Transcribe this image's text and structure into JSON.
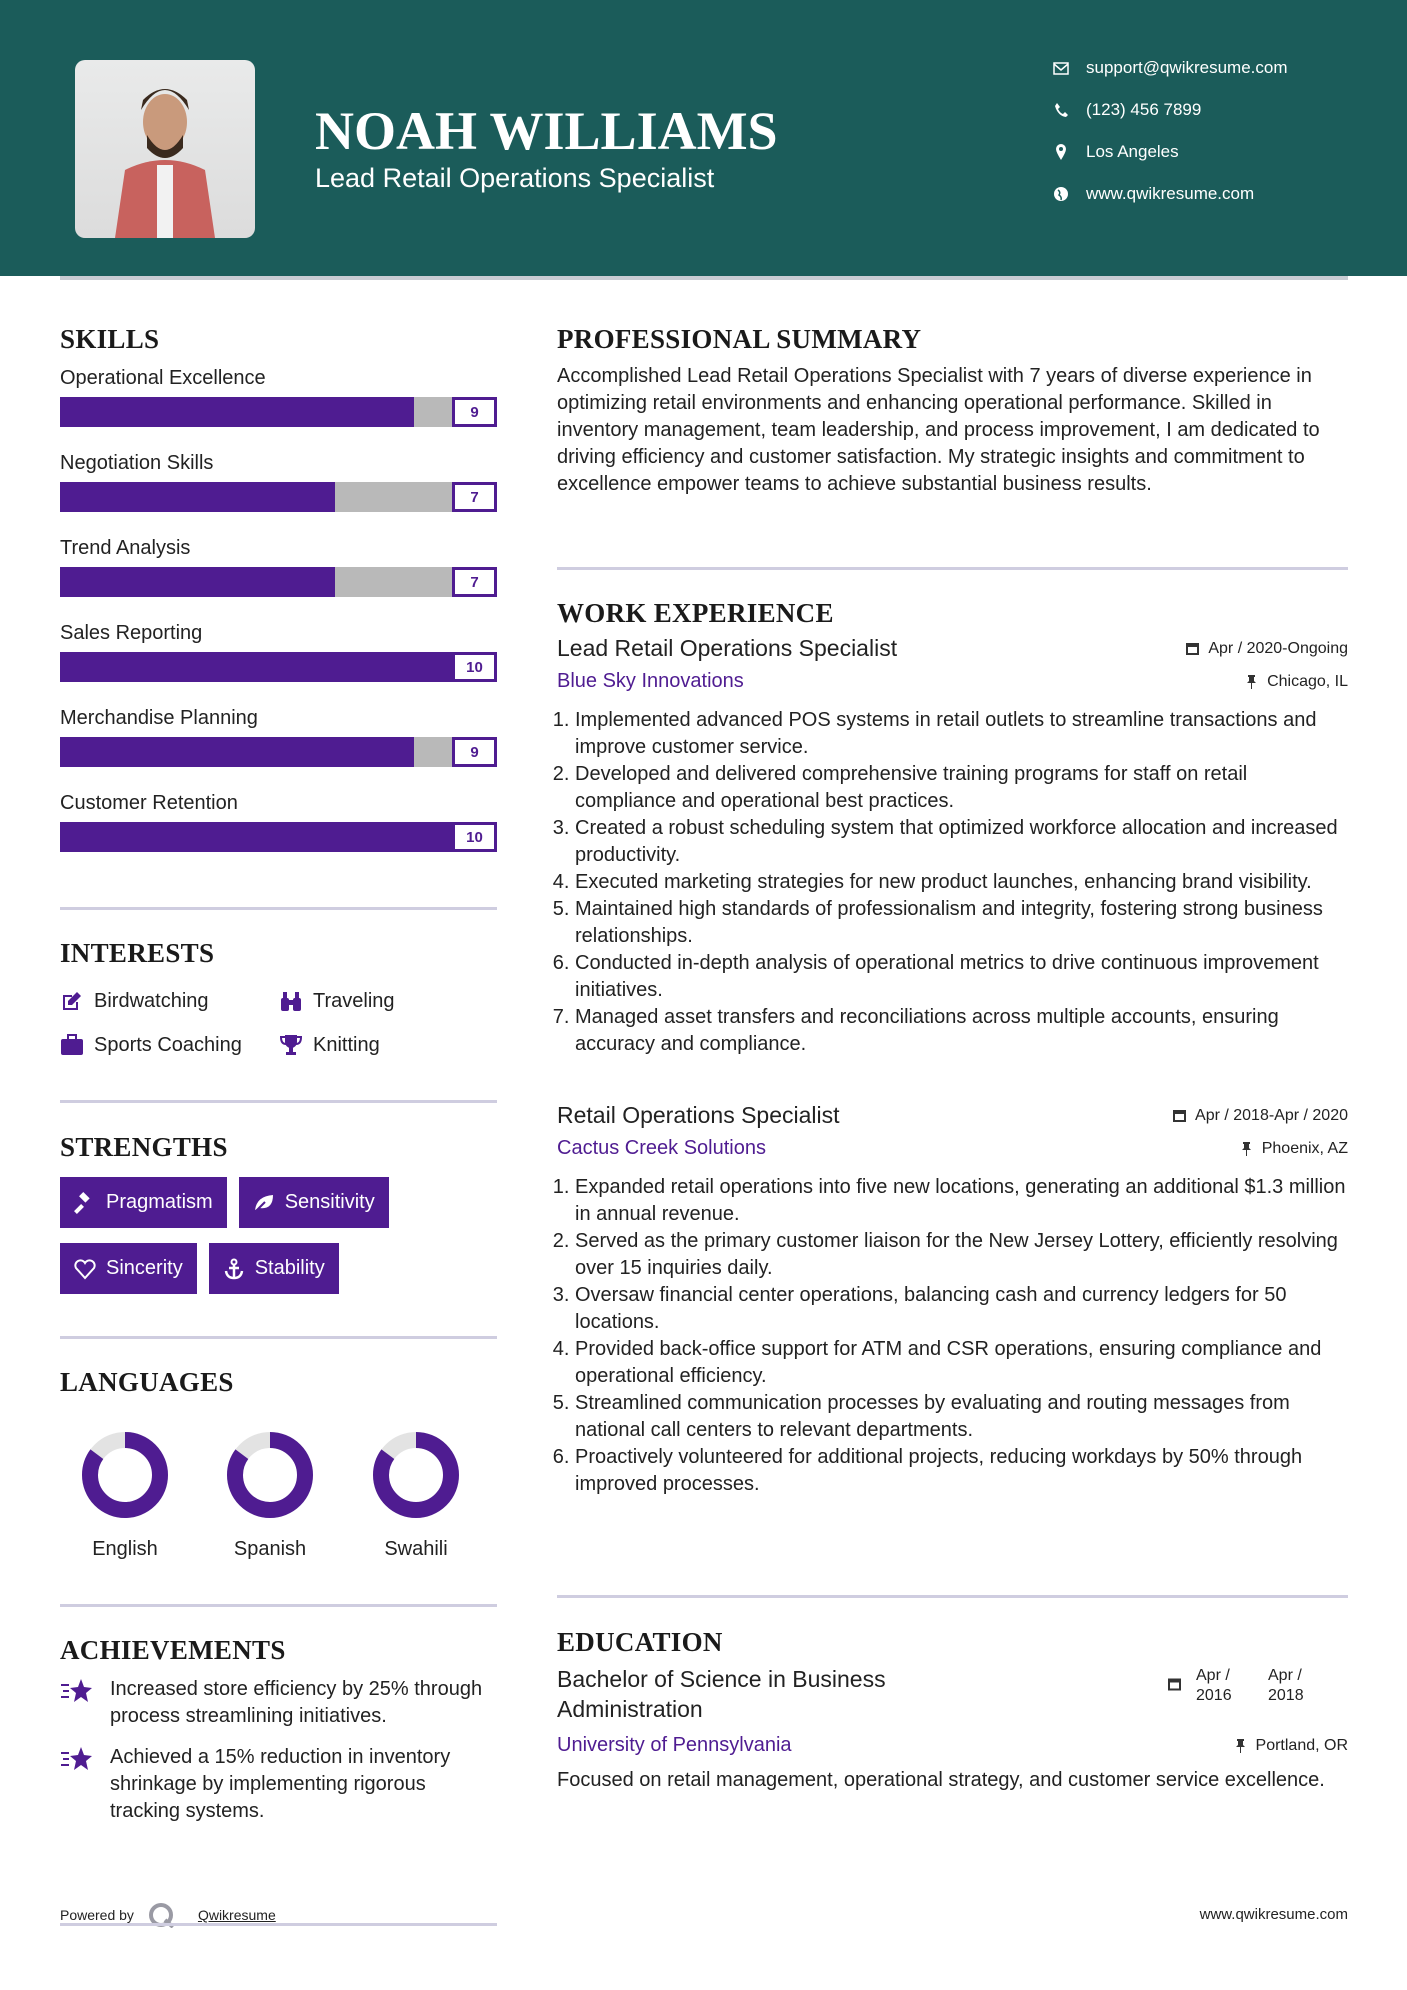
{
  "header": {
    "name": "NOAH WILLIAMS",
    "title": "Lead Retail Operations Specialist",
    "contacts": [
      {
        "icon": "envelope-icon",
        "text": "support@qwikresume.com"
      },
      {
        "icon": "phone-icon",
        "text": "(123) 456 7899"
      },
      {
        "icon": "map-pin-icon",
        "text": "Los Angeles"
      },
      {
        "icon": "globe-icon",
        "text": "www.qwikresume.com"
      }
    ]
  },
  "colors": {
    "header_bg": "#1b5c5a",
    "accent": "#4f1c91",
    "bar_empty": "#b9b9b9"
  },
  "skills": {
    "heading": "SKILLS",
    "max": 10,
    "items": [
      {
        "label": "Operational Excellence",
        "value": "9"
      },
      {
        "label": "Negotiation Skills",
        "value": "7"
      },
      {
        "label": "Trend Analysis",
        "value": "7"
      },
      {
        "label": "Sales Reporting",
        "value": "10"
      },
      {
        "label": "Merchandise Planning",
        "value": "9"
      },
      {
        "label": "Customer Retention",
        "value": "10"
      }
    ]
  },
  "interests": {
    "heading": "INTERESTS",
    "items": [
      {
        "icon": "edit-icon",
        "label": "Birdwatching"
      },
      {
        "icon": "binoculars-icon",
        "label": "Traveling"
      },
      {
        "icon": "briefcase-icon",
        "label": "Sports Coaching"
      },
      {
        "icon": "trophy-icon",
        "label": "Knitting"
      }
    ]
  },
  "strengths": {
    "heading": "STRENGTHS",
    "items": [
      {
        "icon": "gavel-icon",
        "label": "Pragmatism"
      },
      {
        "icon": "leaf-icon",
        "label": "Sensitivity"
      },
      {
        "icon": "heart-icon",
        "label": "Sincerity"
      },
      {
        "icon": "anchor-icon",
        "label": "Stability"
      }
    ]
  },
  "languages": {
    "heading": "LANGUAGES",
    "items": [
      {
        "label": "English",
        "level_pct": 85
      },
      {
        "label": "Spanish",
        "level_pct": 85
      },
      {
        "label": "Swahili",
        "level_pct": 85
      }
    ]
  },
  "achievements": {
    "heading": "ACHIEVEMENTS",
    "items": [
      "Increased store efficiency by 25% through process streamlining initiatives.",
      "Achieved a 15% reduction in inventory shrinkage by implementing rigorous tracking systems."
    ]
  },
  "footer": {
    "powered_by": "Powered by",
    "brand": "Qwikresume",
    "site": "www.qwikresume.com"
  },
  "summary": {
    "heading": "PROFESSIONAL SUMMARY",
    "text": "Accomplished Lead Retail Operations Specialist with 7 years of diverse experience in optimizing retail environments and enhancing operational performance. Skilled in inventory management, team leadership, and process improvement, I am dedicated to driving efficiency and customer satisfaction. My strategic insights and commitment to excellence empower teams to achieve substantial business results."
  },
  "work": {
    "heading": "WORK EXPERIENCE",
    "jobs": [
      {
        "title": "Lead Retail Operations Specialist",
        "dates": "Apr / 2020-Ongoing",
        "company": "Blue Sky Innovations",
        "location": "Chicago, IL",
        "bullets": [
          "Implemented advanced POS systems in retail outlets to streamline transactions and improve customer service.",
          "Developed and delivered comprehensive training programs for staff on retail compliance and operational best practices.",
          "Created a robust scheduling system that optimized workforce allocation and increased productivity.",
          "Executed marketing strategies for new product launches, enhancing brand visibility.",
          "Maintained high standards of professionalism and integrity, fostering strong business relationships.",
          "Conducted in-depth analysis of operational metrics to drive continuous improvement initiatives.",
          "Managed asset transfers and reconciliations across multiple accounts, ensuring accuracy and compliance."
        ]
      },
      {
        "title": "Retail Operations Specialist",
        "dates": "Apr / 2018-Apr / 2020",
        "company": "Cactus Creek Solutions",
        "location": "Phoenix, AZ",
        "bullets": [
          "Expanded retail operations into five new locations, generating an additional $1.3 million in annual revenue.",
          "Served as the primary customer liaison for the New Jersey Lottery, efficiently resolving over 15 inquiries daily.",
          "Oversaw financial center operations, balancing cash and currency ledgers for 50 locations.",
          "Provided back-office support for ATM and CSR operations, ensuring compliance and operational efficiency.",
          "Streamlined communication processes by evaluating and routing messages from national call centers to relevant departments.",
          "Proactively volunteered for additional projects, reducing workdays by 50% through improved processes."
        ]
      }
    ]
  },
  "education": {
    "heading": "EDUCATION",
    "degree": "Bachelor of Science in Business Administration",
    "start": "Apr / 2016",
    "end": "Apr / 2018",
    "school": "University of Pennsylvania",
    "location": "Portland, OR",
    "text": "Focused on retail management, operational strategy, and customer service excellence."
  }
}
